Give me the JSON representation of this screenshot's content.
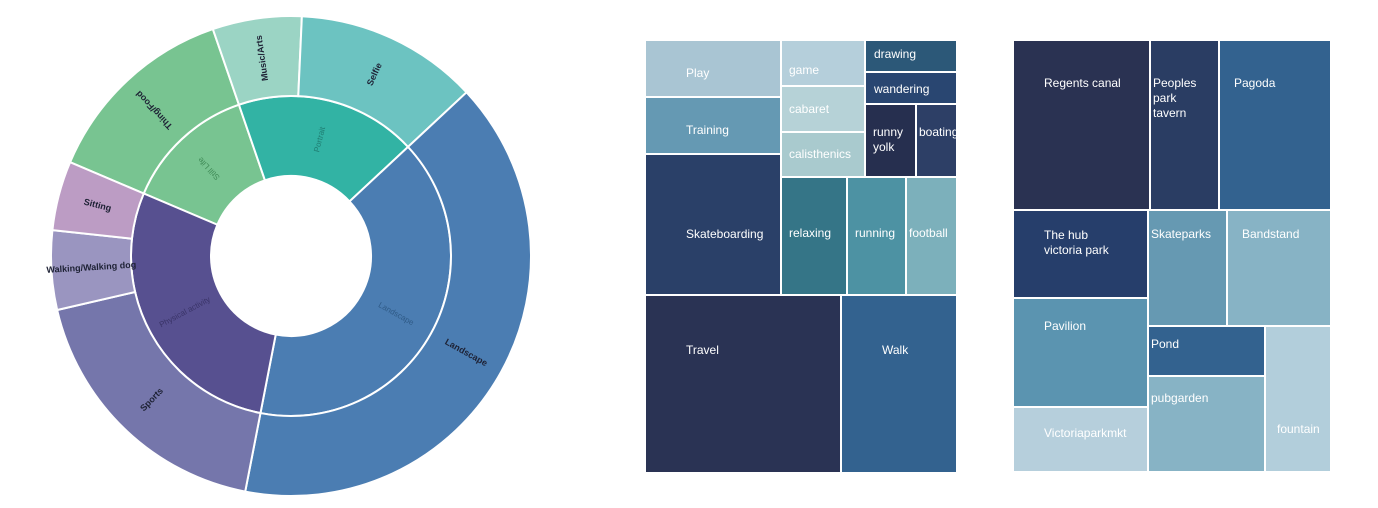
{
  "chart_data": [
    {
      "type": "sunburst",
      "title": "",
      "inner": [
        {
          "label": "Still Life",
          "value": 4,
          "color": "#78c491",
          "text_color": "#3f8a56"
        },
        {
          "label": "Portrait",
          "value": 5.5,
          "color": "#32b3a4",
          "text_color": "#1f7d72"
        },
        {
          "label": "Landscape",
          "value": 12,
          "color": "#4b7db2",
          "text_color": "#2f5a86"
        },
        {
          "label": "Physical activity",
          "value": 8.5,
          "color": "#575090",
          "text_color": "#3a3468"
        }
      ],
      "outer": [
        {
          "label": "Thing/Food",
          "value": 4,
          "color": "#78c491",
          "parent": "Still Life"
        },
        {
          "label": "Music/Arts",
          "value": 1.8,
          "color": "#9bd4c4",
          "parent": "Portrait"
        },
        {
          "label": "Selfie",
          "value": 3.7,
          "color": "#6cc3c1",
          "parent": "Portrait"
        },
        {
          "label": "Landscape",
          "value": 12,
          "color": "#4b7db2",
          "parent": "Landscape"
        },
        {
          "label": "Sports",
          "value": 5.5,
          "color": "#7576ab",
          "parent": "Physical activity"
        },
        {
          "label": "Walking/Walking dog",
          "value": 1.6,
          "color": "#9a95c0",
          "parent": "Physical activity"
        },
        {
          "label": "Sitting",
          "value": 1.4,
          "color": "#bc9cc4",
          "parent": "Physical activity"
        }
      ]
    },
    {
      "type": "treemap",
      "cells": [
        {
          "label": "Play",
          "value": 7.6,
          "color": "#a9c5d3"
        },
        {
          "label": "game",
          "value": 3.5,
          "color": "#b5cfdb"
        },
        {
          "label": "drawing",
          "value": 2.8,
          "color": "#2c5878"
        },
        {
          "label": "wandering",
          "value": 2.8,
          "color": "#294671"
        },
        {
          "label": "cabaret",
          "value": 3.4,
          "color": "#b6d2d7"
        },
        {
          "label": "Training",
          "value": 7.6,
          "color": "#6599b3"
        },
        {
          "label": "runny\nyolk",
          "value": 4.9,
          "color": "#262f4f"
        },
        {
          "label": "boating",
          "value": 3.1,
          "color": "#2d3f66"
        },
        {
          "label": "calisthenics",
          "value": 3.0,
          "color": "#a9cace"
        },
        {
          "label": "Skateboarding",
          "value": 19.4,
          "color": "#2a4068"
        },
        {
          "label": "relaxing",
          "value": 7.8,
          "color": "#357587"
        },
        {
          "label": "running",
          "value": 7.0,
          "color": "#4d92a3"
        },
        {
          "label": "football",
          "value": 5.9,
          "color": "#7cb0bb"
        },
        {
          "label": "Travel",
          "value": 35.7,
          "color": "#2a3354"
        },
        {
          "label": "Walk",
          "value": 19.7,
          "color": "#33628f"
        }
      ]
    },
    {
      "type": "treemap",
      "cells": [
        {
          "label": "Regents canal",
          "value": 16.7,
          "color": "#2a3252"
        },
        {
          "label": "Peoples park\ntavern",
          "value": 8.2,
          "color": "#2a3d63"
        },
        {
          "label": "Pagoda",
          "value": 13.6,
          "color": "#33628f"
        },
        {
          "label": "The hub\nvictoria park",
          "value": 10.3,
          "color": "#263e6b"
        },
        {
          "label": "Skateparks",
          "value": 5.8,
          "color": "#6699b2"
        },
        {
          "label": "Bandstand",
          "value": 7.4,
          "color": "#87b3c5"
        },
        {
          "label": "Pavilion",
          "value": 9.8,
          "color": "#5b94b0"
        },
        {
          "label": "Pond",
          "value": 3.9,
          "color": "#33628f"
        },
        {
          "label": "fountain",
          "value": 10.5,
          "color": "#b2cedb"
        },
        {
          "label": "pubgarden",
          "value": 7.8,
          "color": "#87b3c5"
        },
        {
          "label": "Victoriaparkmkt",
          "value": 6.0,
          "color": "#b6cfdc"
        }
      ]
    }
  ]
}
